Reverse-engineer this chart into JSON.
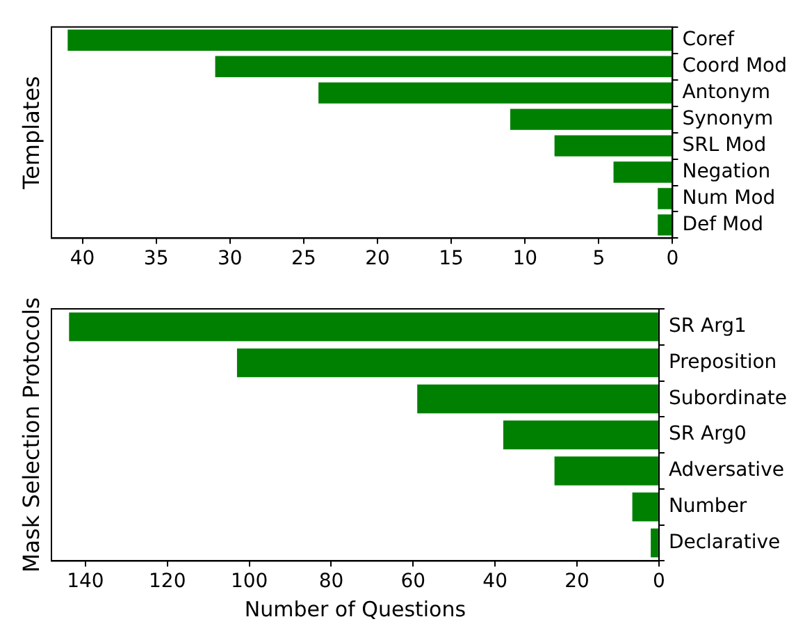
{
  "chart_data": [
    {
      "type": "bar",
      "orientation": "horizontal",
      "ylabel": "Templates",
      "categories": [
        "Coref",
        "Coord Mod",
        "Antonym",
        "Synonym",
        "SRL Mod",
        "Negation",
        "Num Mod",
        "Def Mod"
      ],
      "values": [
        41,
        31,
        24,
        11,
        8,
        4,
        1,
        1
      ],
      "color": "#008000",
      "xlim": [
        42.1,
        0
      ],
      "xticks": [
        40,
        35,
        30,
        25,
        20,
        15,
        10,
        5,
        0
      ],
      "grid": false,
      "legend": false
    },
    {
      "type": "bar",
      "orientation": "horizontal",
      "ylabel": "Mask Selection Protocols",
      "xlabel": "Number of Questions",
      "categories": [
        "SR Arg1",
        "Preposition",
        "Subordinate",
        "SR Arg0",
        "Adversative",
        "Number",
        "Declarative"
      ],
      "values": [
        144,
        103,
        59,
        38,
        25.5,
        6.5,
        2
      ],
      "color": "#008000",
      "xlim": [
        148.3,
        0
      ],
      "xticks": [
        140,
        120,
        100,
        80,
        60,
        40,
        20,
        0
      ],
      "grid": false,
      "legend": false
    }
  ]
}
